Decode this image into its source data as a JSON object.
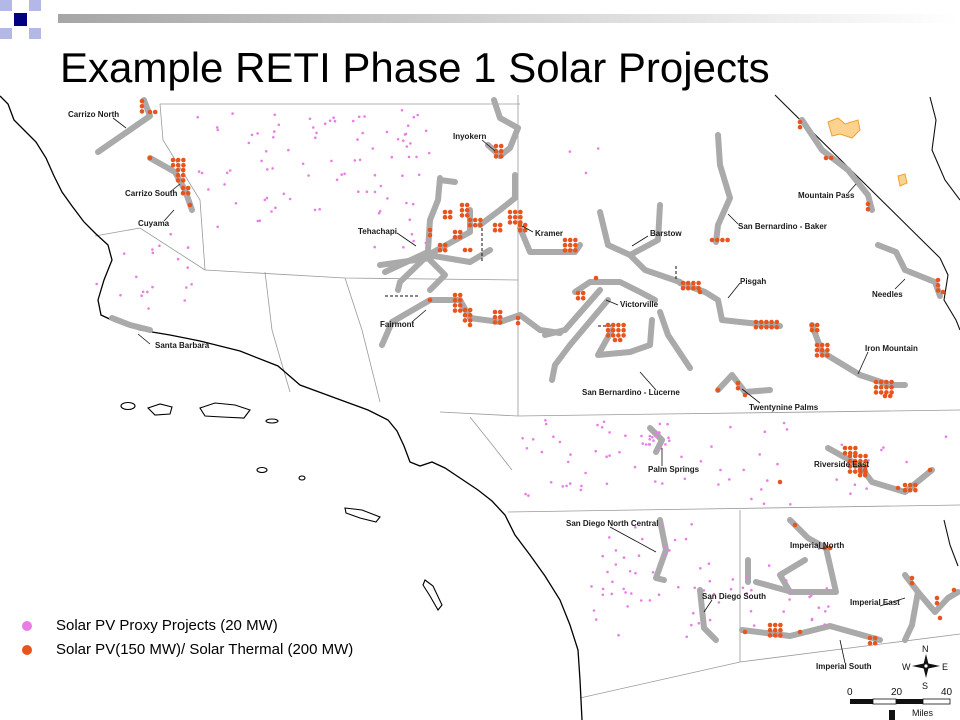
{
  "title": "Example RETI Phase 1 Solar Projects",
  "map": {
    "labels": [
      "Carrizo North",
      "Carrizo South",
      "Cuyama",
      "Santa Barbara",
      "Inyokern",
      "Tehachapi",
      "Kramer",
      "Fairmont",
      "Barstow",
      "Victorville",
      "San Bernardino - Baker",
      "Mountain Pass",
      "Pisgah",
      "Needles",
      "San Bernardino - Lucerne",
      "Iron Mountain",
      "Twentynine Palms",
      "Palm Springs",
      "Riverside East",
      "San Diego North Central",
      "Imperial North",
      "San Diego South",
      "Imperial East",
      "Imperial South"
    ]
  },
  "legend": [
    {
      "label": "Solar PV Proxy Projects (20 MW)",
      "color": "#e97de6",
      "icon": "pink-circle-icon"
    },
    {
      "label": "Solar PV(150 MW)/ Solar Thermal (200 MW)",
      "color": "#e8541e",
      "icon": "orange-circle-icon"
    }
  ],
  "scale_bar": {
    "ticks": [
      "0",
      "20",
      "40"
    ],
    "unit": "Miles"
  },
  "compass": {
    "north": "N",
    "east": "E",
    "south": "S",
    "west": "W"
  },
  "colors": {
    "corridor": "#aaaaaa",
    "accent": "#000080",
    "study_area_fill": "#fbd38f",
    "study_area_stroke": "#f0a030"
  }
}
